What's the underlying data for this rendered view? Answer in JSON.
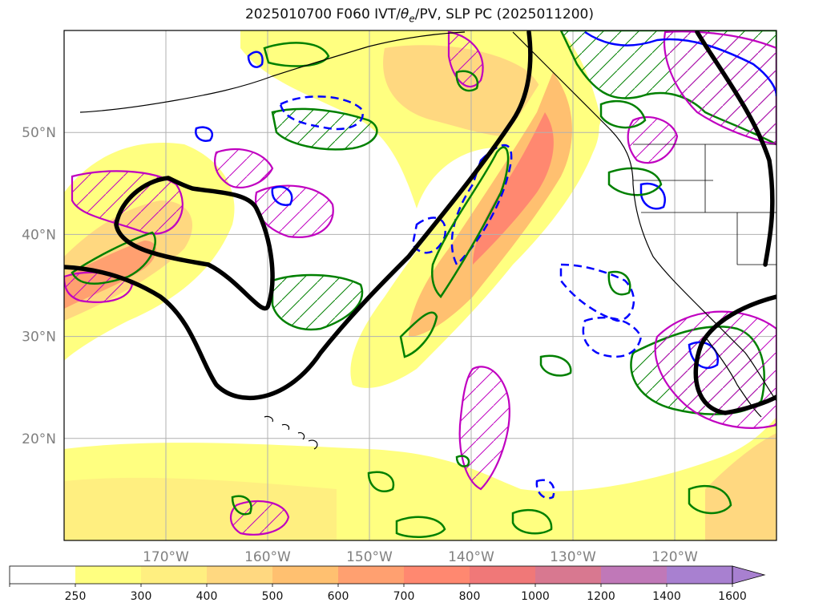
{
  "title": "2025010700 F060 IVT/θe/PV, SLP PC (2025011200)",
  "title_parts": {
    "pre": "2025010700 F060 IVT/",
    "theta": "θ",
    "sub": "e",
    "post": "/PV, SLP PC (2025011200)"
  },
  "map": {
    "lon_range": [
      -180,
      -110
    ],
    "lat_range": [
      10,
      60
    ],
    "lon_labels": [
      {
        "lon": -170,
        "label": "170°W"
      },
      {
        "lon": -160,
        "label": "160°W"
      },
      {
        "lon": -150,
        "label": "150°W"
      },
      {
        "lon": -140,
        "label": "140°W"
      },
      {
        "lon": -130,
        "label": "130°W"
      },
      {
        "lon": -120,
        "label": "120°W"
      }
    ],
    "lat_labels": [
      {
        "lat": 50,
        "label": "50°N"
      },
      {
        "lat": 40,
        "label": "40°N"
      },
      {
        "lat": 30,
        "label": "30°N"
      },
      {
        "lat": 20,
        "label": "20°N"
      }
    ],
    "colors": {
      "slp_contour": "#000000",
      "pv_contour": "#008000",
      "theta_e_contour": "#0000ff",
      "hatch_contour": "#c000c0",
      "coast": "#000000",
      "grid": "#b0b0b0"
    }
  },
  "colorbar": {
    "levels": [
      "250",
      "300",
      "400",
      "500",
      "600",
      "700",
      "800",
      "1000",
      "1200",
      "1400",
      "1600"
    ],
    "colors": [
      "#ffffff",
      "#ffff80",
      "#ffef80",
      "#ffd880",
      "#ffc070",
      "#ffa070",
      "#ff8870",
      "#f07878",
      "#d87890",
      "#c078b8",
      "#a880d0"
    ],
    "extend": "max"
  }
}
